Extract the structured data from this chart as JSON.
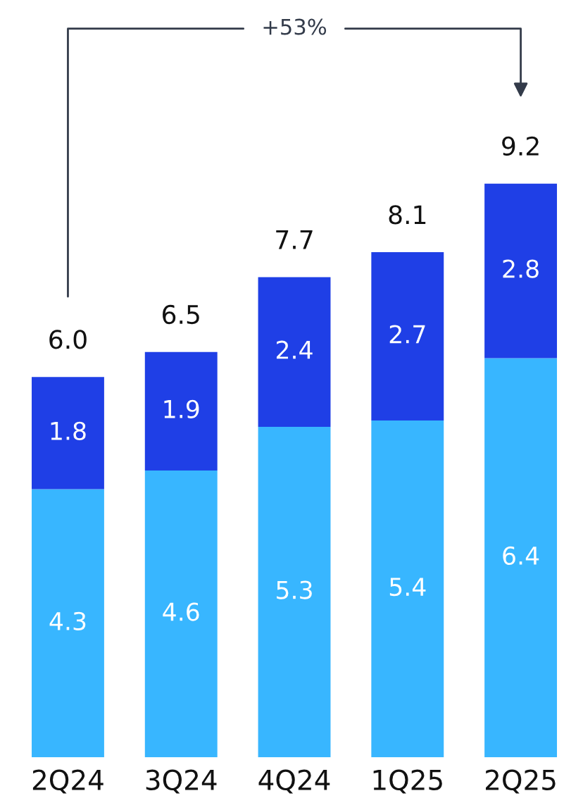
{
  "chart_data": {
    "type": "bar",
    "stacked": true,
    "categories": [
      "2Q24",
      "3Q24",
      "4Q24",
      "1Q25",
      "2Q25"
    ],
    "series": [
      {
        "color": "#38b6ff",
        "values": [
          4.3,
          4.6,
          5.3,
          5.4,
          6.4
        ]
      },
      {
        "color": "#1f3fe6",
        "values": [
          1.8,
          1.9,
          2.4,
          2.7,
          2.8
        ]
      }
    ],
    "data_labels": true,
    "totals": [
      "6.0",
      "6.5",
      "7.7",
      "8.1",
      "9.2"
    ],
    "annotations": [
      "+53%"
    ],
    "grid": false,
    "legend": false
  }
}
